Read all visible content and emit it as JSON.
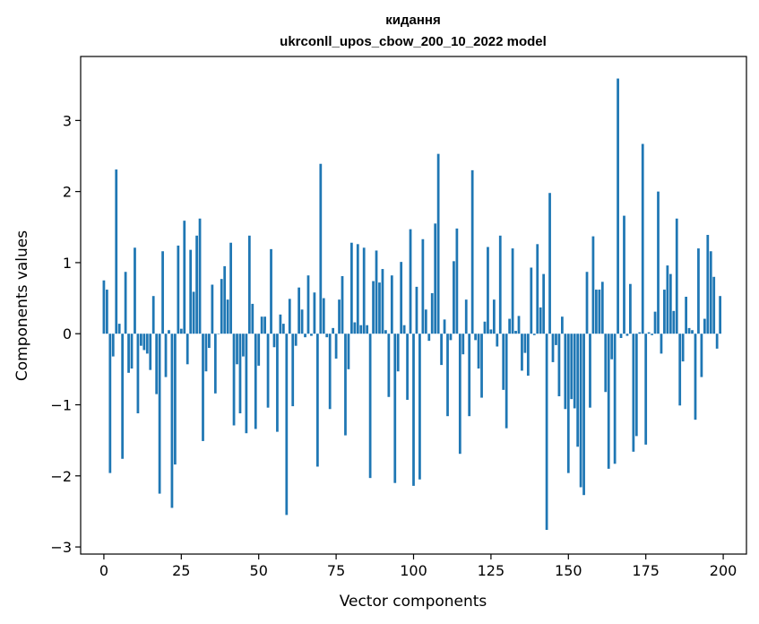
{
  "chart_data": {
    "type": "bar",
    "title": "кидання",
    "subtitle": "ukrconll_upos_cbow_200_10_2022 model",
    "xlabel": "Vector components",
    "ylabel": "Components values",
    "xlim": [
      -7.5,
      207.5
    ],
    "ylim": [
      -3.1,
      3.9
    ],
    "xticks": [
      0,
      25,
      50,
      75,
      100,
      125,
      150,
      175,
      200
    ],
    "yticks": [
      -3,
      -2,
      -1,
      0,
      1,
      2,
      3
    ],
    "ytick_labels": [
      "−3",
      "−2",
      "−1",
      "0",
      "1",
      "2",
      "3"
    ],
    "grid": false,
    "color": "#1f77b4",
    "x_start": 0,
    "values": [
      0.75,
      0.62,
      -1.96,
      -0.32,
      2.31,
      0.14,
      -1.76,
      0.87,
      -0.55,
      -0.49,
      1.21,
      -1.12,
      -0.17,
      -0.23,
      -0.28,
      -0.51,
      0.53,
      -0.85,
      -2.25,
      1.16,
      -0.61,
      0.05,
      -2.45,
      -1.84,
      1.24,
      0.07,
      1.59,
      -0.43,
      1.18,
      0.59,
      1.38,
      1.62,
      -1.51,
      -0.53,
      -0.2,
      0.69,
      -0.84,
      0.0,
      0.77,
      0.95,
      0.48,
      1.28,
      -1.29,
      -0.43,
      -1.12,
      -0.32,
      -1.4,
      1.38,
      0.42,
      -1.34,
      -0.45,
      0.24,
      0.24,
      -1.04,
      1.19,
      -0.19,
      -1.38,
      0.27,
      0.14,
      -2.55,
      0.49,
      -1.02,
      -0.17,
      0.65,
      0.34,
      -0.05,
      0.82,
      -0.03,
      0.58,
      -1.87,
      2.39,
      0.5,
      -0.05,
      -1.06,
      0.08,
      -0.35,
      0.48,
      0.81,
      -1.43,
      -0.5,
      1.28,
      0.16,
      1.26,
      0.12,
      1.21,
      0.12,
      -2.03,
      0.74,
      1.17,
      0.72,
      0.91,
      0.05,
      -0.89,
      0.82,
      -2.1,
      -0.53,
      1.01,
      0.12,
      -0.93,
      1.47,
      -2.14,
      0.66,
      -2.05,
      1.33,
      0.34,
      -0.1,
      0.57,
      1.55,
      2.53,
      -0.44,
      0.2,
      -1.16,
      -0.09,
      1.02,
      1.48,
      -1.69,
      -0.29,
      0.48,
      -1.16,
      2.3,
      -0.09,
      -0.49,
      -0.9,
      0.17,
      1.22,
      0.06,
      0.48,
      -0.18,
      1.38,
      -0.79,
      -1.33,
      0.21,
      1.2,
      0.04,
      0.25,
      -0.52,
      -0.27,
      -0.59,
      0.93,
      -0.02,
      1.26,
      0.37,
      0.84,
      -2.76,
      1.98,
      -0.4,
      -0.16,
      -0.88,
      0.24,
      -1.06,
      -1.96,
      -0.92,
      -1.05,
      -1.59,
      -2.16,
      -2.27,
      0.87,
      -1.04,
      1.37,
      0.62,
      0.62,
      0.73,
      -0.82,
      -1.9,
      -0.36,
      -1.83,
      3.59,
      -0.06,
      1.66,
      -0.03,
      0.7,
      -1.66,
      -1.44,
      0.02,
      2.67,
      -1.56,
      0.02,
      -0.02,
      0.31,
      2.0,
      -0.28,
      0.62,
      0.96,
      0.84,
      0.32,
      1.62,
      -1.01,
      -0.39,
      0.52,
      0.08,
      0.05,
      -1.21,
      1.2,
      -0.61,
      0.21,
      1.39,
      1.16,
      0.8,
      -0.21,
      0.53
    ]
  }
}
